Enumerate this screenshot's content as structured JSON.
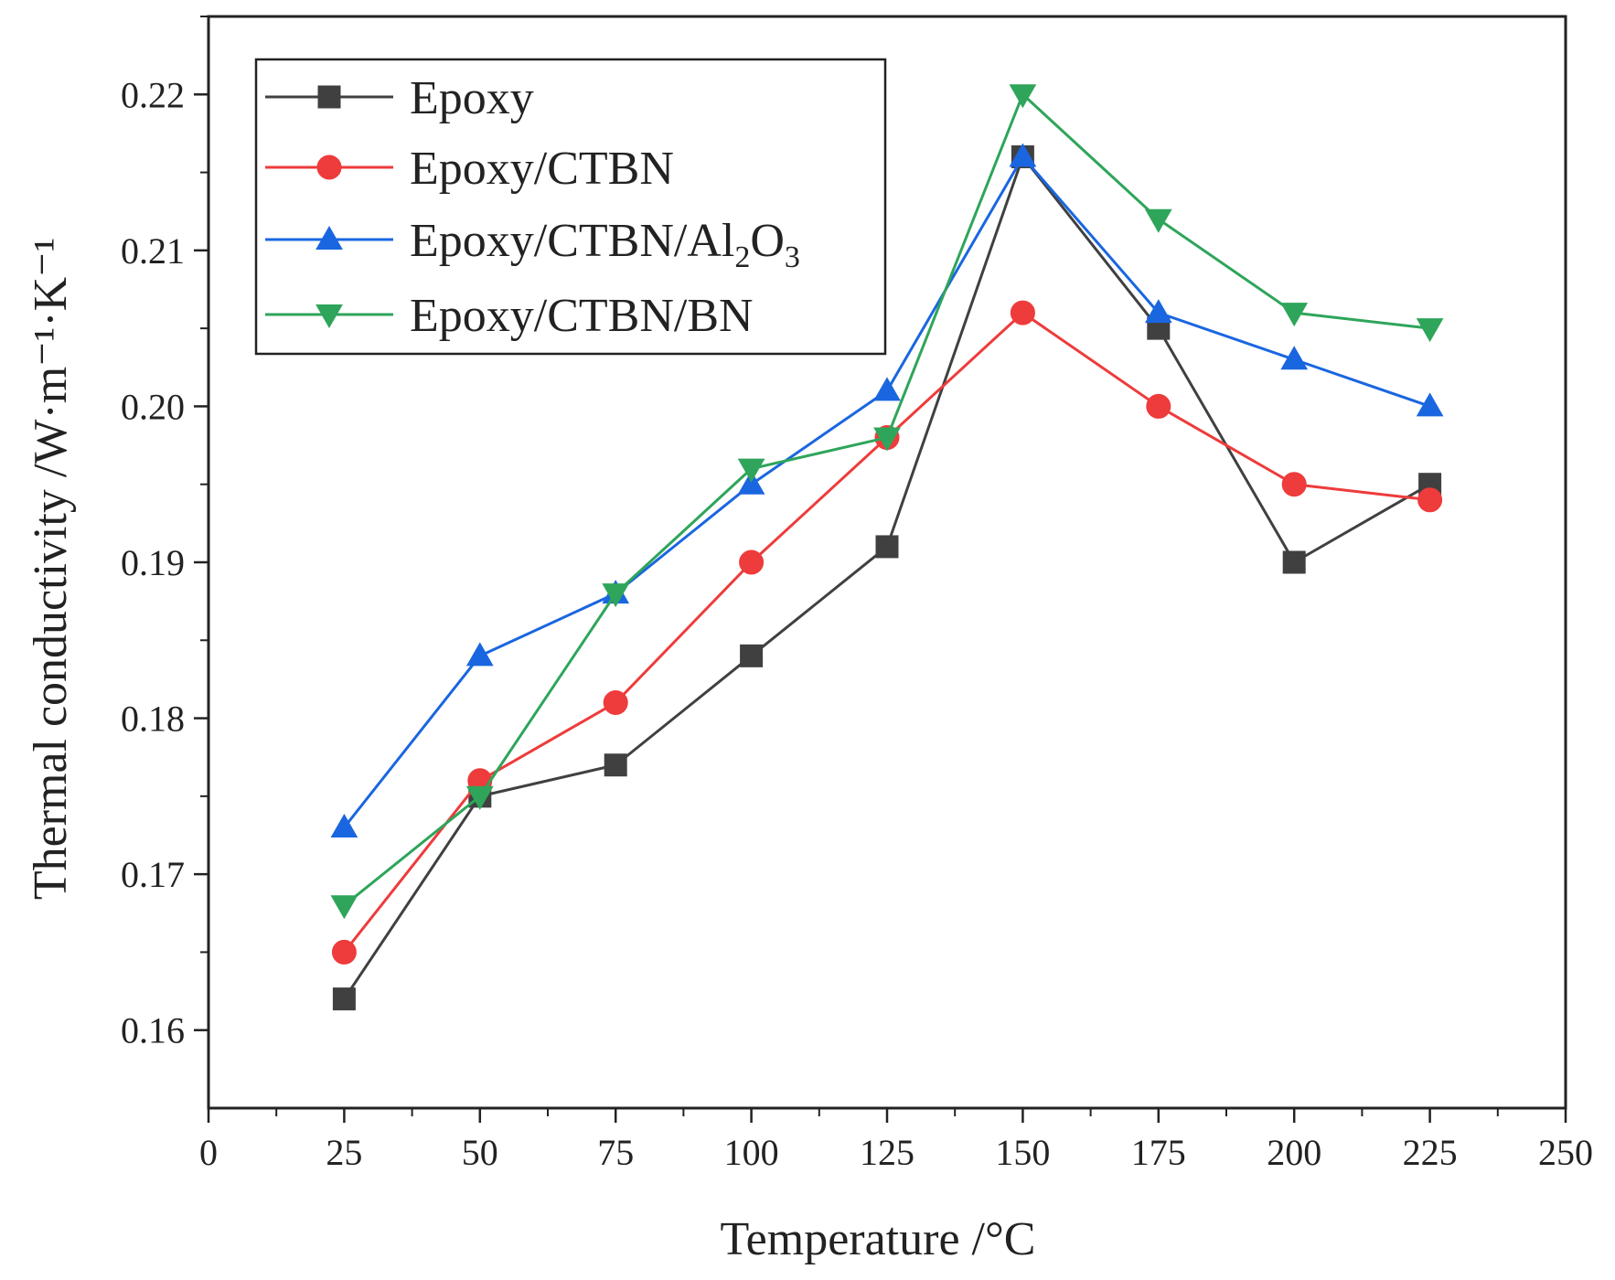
{
  "chart_data": {
    "type": "line",
    "title": "",
    "xlabel": "Temperature /°C",
    "ylabel": "Thermal conductivity /W·m⁻¹·K⁻¹",
    "xlim": [
      0,
      250
    ],
    "ylim": [
      0.155,
      0.225
    ],
    "xticks": [
      0,
      25,
      50,
      75,
      100,
      125,
      150,
      175,
      200,
      225,
      250
    ],
    "yticks": [
      0.16,
      0.17,
      0.18,
      0.19,
      0.2,
      0.21,
      0.22
    ],
    "xtick_labels": [
      "0",
      "25",
      "50",
      "75",
      "100",
      "125",
      "150",
      "175",
      "200",
      "225",
      "250"
    ],
    "ytick_labels": [
      "0.16",
      "0.17",
      "0.18",
      "0.19",
      "0.20",
      "0.21",
      "0.22"
    ],
    "grid": false,
    "legend_position": "top-left",
    "x": [
      25,
      50,
      75,
      100,
      125,
      150,
      175,
      200,
      225
    ],
    "series": [
      {
        "name": "Epoxy",
        "label_main": "Epoxy",
        "color": "#404040",
        "marker": "square",
        "values": [
          0.162,
          0.175,
          0.177,
          0.184,
          0.191,
          0.216,
          0.205,
          0.19,
          0.195
        ]
      },
      {
        "name": "Epoxy/CTBN",
        "label_main": "Epoxy/CTBN",
        "color": "#ee3b3b",
        "marker": "circle",
        "values": [
          0.165,
          0.176,
          0.181,
          0.19,
          0.198,
          0.206,
          0.2,
          0.195,
          0.194
        ]
      },
      {
        "name": "Epoxy/CTBN/Al2O3",
        "label_main": "Epoxy/CTBN/Al",
        "label_sub1": "2",
        "label_mid": "O",
        "label_sub2": "3",
        "color": "#1a66e0",
        "marker": "triangle-up",
        "values": [
          0.173,
          0.184,
          0.188,
          0.195,
          0.201,
          0.216,
          0.206,
          0.203,
          0.2
        ]
      },
      {
        "name": "Epoxy/CTBN/BN",
        "label_main": "Epoxy/CTBN/BN",
        "color": "#2ea55a",
        "marker": "triangle-down",
        "values": [
          0.168,
          0.175,
          0.188,
          0.196,
          0.198,
          0.22,
          0.212,
          0.206,
          0.205
        ]
      }
    ]
  }
}
